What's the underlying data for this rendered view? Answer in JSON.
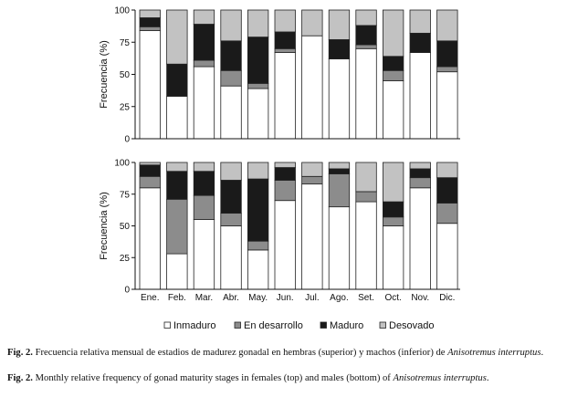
{
  "chart_data": [
    {
      "type": "bar",
      "stacked": true,
      "panel": "top",
      "ylabel": "Frecuencia (%)",
      "ylim": [
        0,
        100
      ],
      "yticks": [
        0,
        25,
        50,
        75,
        100
      ],
      "categories": [
        "Ene.",
        "Feb.",
        "Mar.",
        "Abr.",
        "May.",
        "Jun.",
        "Jul.",
        "Ago.",
        "Set.",
        "Oct.",
        "Nov.",
        "Dic."
      ],
      "series": [
        {
          "name": "Inmaduro",
          "color": "#ffffff",
          "values": [
            84,
            33,
            56,
            41,
            39,
            67,
            80,
            62,
            70,
            45,
            67,
            52
          ]
        },
        {
          "name": "En desarrollo",
          "color": "#8c8c8c",
          "values": [
            3,
            0,
            5,
            12,
            4,
            3,
            0,
            0,
            3,
            8,
            0,
            4
          ]
        },
        {
          "name": "Maduro",
          "color": "#1a1a1a",
          "values": [
            7,
            25,
            28,
            23,
            36,
            13,
            0,
            15,
            15,
            11,
            15,
            20
          ]
        },
        {
          "name": "Desovado",
          "color": "#c2c2c2",
          "values": [
            6,
            42,
            11,
            24,
            21,
            17,
            20,
            23,
            12,
            36,
            18,
            24
          ]
        }
      ]
    },
    {
      "type": "bar",
      "stacked": true,
      "panel": "bottom",
      "ylabel": "Frecuencia (%)",
      "ylim": [
        0,
        100
      ],
      "yticks": [
        0,
        25,
        50,
        75,
        100
      ],
      "categories": [
        "Ene.",
        "Feb.",
        "Mar.",
        "Abr.",
        "May.",
        "Jun.",
        "Jul.",
        "Ago.",
        "Set.",
        "Oct.",
        "Nov.",
        "Dic."
      ],
      "series": [
        {
          "name": "Inmaduro",
          "color": "#ffffff",
          "values": [
            80,
            28,
            55,
            50,
            31,
            70,
            83,
            65,
            69,
            50,
            80,
            52
          ]
        },
        {
          "name": "En desarrollo",
          "color": "#8c8c8c",
          "values": [
            9,
            43,
            19,
            10,
            7,
            16,
            6,
            26,
            8,
            7,
            8,
            16
          ]
        },
        {
          "name": "Maduro",
          "color": "#1a1a1a",
          "values": [
            9,
            22,
            19,
            26,
            49,
            10,
            0,
            4,
            0,
            12,
            7,
            20
          ]
        },
        {
          "name": "Desovado",
          "color": "#c2c2c2",
          "values": [
            2,
            7,
            7,
            14,
            13,
            4,
            11,
            5,
            23,
            31,
            5,
            12
          ]
        }
      ]
    }
  ],
  "legend": [
    {
      "label": "Inmaduro",
      "color": "#ffffff"
    },
    {
      "label": "En desarrollo",
      "color": "#8c8c8c"
    },
    {
      "label": "Maduro",
      "color": "#1a1a1a"
    },
    {
      "label": "Desovado",
      "color": "#c2c2c2"
    }
  ],
  "caption": [
    {
      "label": "Fig. 2.",
      "text": "Frecuencia relativa mensual de estadios de madurez gonadal en hembras (superior) y machos (inferior) de",
      "species": "Anisotremus interruptus",
      "end": "."
    },
    {
      "label": "Fig. 2.",
      "text": "Monthly relative frequency of gonad maturity stages in females (top) and males (bottom) of",
      "species": "Anisotremus interruptus",
      "end": "."
    }
  ]
}
